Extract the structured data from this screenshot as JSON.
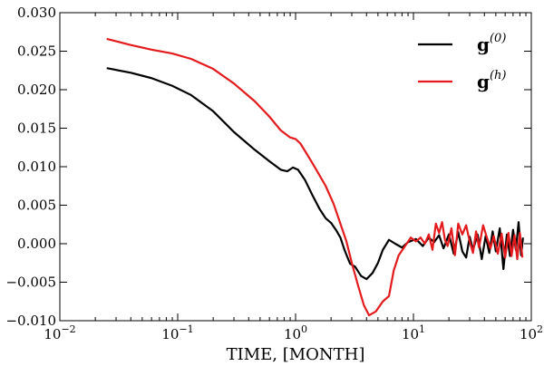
{
  "chart_data": {
    "type": "line",
    "xlabel": "TIME, [MONTH]",
    "ylabel": "",
    "xscale": "log",
    "xlim": [
      0.01,
      100
    ],
    "ylim": [
      -0.01,
      0.03
    ],
    "grid": false,
    "legend_position": "top-right",
    "x_ticks": [
      0.01,
      0.1,
      1,
      10,
      100
    ],
    "x_tick_labels": [
      {
        "base": "10",
        "exp": "−2"
      },
      {
        "base": "10",
        "exp": "−1"
      },
      {
        "base": "10",
        "exp": "0"
      },
      {
        "base": "10",
        "exp": "1"
      },
      {
        "base": "10",
        "exp": "2"
      }
    ],
    "y_ticks": [
      -0.01,
      -0.005,
      0.0,
      0.005,
      0.01,
      0.015,
      0.02,
      0.025,
      0.03
    ],
    "y_tick_labels": [
      "−0.010",
      "−0.005",
      "0.000",
      "0.005",
      "0.010",
      "0.015",
      "0.020",
      "0.025",
      "0.030"
    ],
    "series": [
      {
        "name": "g(0)",
        "legend_base": "g",
        "legend_sup": "(0)",
        "color": "#000000",
        "points": [
          [
            0.025,
            0.0228
          ],
          [
            0.04,
            0.0222
          ],
          [
            0.06,
            0.0215
          ],
          [
            0.09,
            0.0205
          ],
          [
            0.13,
            0.0193
          ],
          [
            0.2,
            0.0172
          ],
          [
            0.3,
            0.0145
          ],
          [
            0.45,
            0.0122
          ],
          [
            0.6,
            0.0107
          ],
          [
            0.75,
            0.0096
          ],
          [
            0.85,
            0.0094
          ],
          [
            0.95,
            0.0099
          ],
          [
            1.05,
            0.0096
          ],
          [
            1.2,
            0.0083
          ],
          [
            1.4,
            0.0062
          ],
          [
            1.6,
            0.0045
          ],
          [
            1.8,
            0.0033
          ],
          [
            2.0,
            0.0027
          ],
          [
            2.2,
            0.0018
          ],
          [
            2.4,
            0.0008
          ],
          [
            2.6,
            -0.0008
          ],
          [
            2.9,
            -0.0026
          ],
          [
            3.2,
            -0.003
          ],
          [
            3.6,
            -0.0042
          ],
          [
            4.0,
            -0.0046
          ],
          [
            4.5,
            -0.0038
          ],
          [
            5.0,
            -0.0025
          ],
          [
            5.5,
            -0.0008
          ],
          [
            6.2,
            0.0005
          ],
          [
            7.0,
            0.0
          ],
          [
            8.0,
            -0.0005
          ],
          [
            9.0,
            0.0002
          ],
          [
            10.5,
            0.0006
          ],
          [
            12.0,
            -0.0003
          ],
          [
            13.5,
            0.0008
          ],
          [
            15.0,
            0.0002
          ],
          [
            16.5,
            0.0011
          ],
          [
            18.0,
            -0.0006
          ],
          [
            20.0,
            0.0012
          ],
          [
            22.0,
            -0.0013
          ],
          [
            24.0,
            0.0015
          ],
          [
            26.0,
            -0.001
          ],
          [
            28.0,
            -0.0018
          ],
          [
            30.0,
            0.0009
          ],
          [
            32.0,
            -0.0008
          ],
          [
            35.0,
            0.0012
          ],
          [
            38.0,
            -0.002
          ],
          [
            41.0,
            0.001
          ],
          [
            44.0,
            -0.0012
          ],
          [
            47.0,
            0.0016
          ],
          [
            50.0,
            -0.001
          ],
          [
            54.0,
            0.002
          ],
          [
            58.0,
            -0.0033
          ],
          [
            62.0,
            0.0012
          ],
          [
            66.0,
            -0.0016
          ],
          [
            70.0,
            0.0018
          ],
          [
            74.0,
            -0.0008
          ],
          [
            78.0,
            0.0028
          ],
          [
            82.0,
            -0.0015
          ],
          [
            85.0,
            0.0008
          ]
        ]
      },
      {
        "name": "g(h)",
        "legend_base": "g",
        "legend_sup": "(h)",
        "color": "#e41a1c",
        "points": [
          [
            0.025,
            0.0266
          ],
          [
            0.04,
            0.0258
          ],
          [
            0.06,
            0.0252
          ],
          [
            0.09,
            0.0247
          ],
          [
            0.13,
            0.024
          ],
          [
            0.2,
            0.0227
          ],
          [
            0.3,
            0.0208
          ],
          [
            0.45,
            0.0185
          ],
          [
            0.6,
            0.0165
          ],
          [
            0.75,
            0.0147
          ],
          [
            0.9,
            0.0138
          ],
          [
            1.0,
            0.0136
          ],
          [
            1.1,
            0.013
          ],
          [
            1.3,
            0.0112
          ],
          [
            1.5,
            0.0096
          ],
          [
            1.8,
            0.0075
          ],
          [
            2.1,
            0.0052
          ],
          [
            2.4,
            0.0026
          ],
          [
            2.7,
            0.0003
          ],
          [
            3.0,
            -0.0025
          ],
          [
            3.4,
            -0.0055
          ],
          [
            3.8,
            -0.008
          ],
          [
            4.2,
            -0.0093
          ],
          [
            4.8,
            -0.0088
          ],
          [
            5.5,
            -0.0075
          ],
          [
            6.2,
            -0.0068
          ],
          [
            6.8,
            -0.0035
          ],
          [
            7.5,
            -0.0015
          ],
          [
            8.5,
            -0.0003
          ],
          [
            9.5,
            0.0008
          ],
          [
            10.5,
            0.0003
          ],
          [
            11.5,
            0.0008
          ],
          [
            12.5,
            0.0
          ],
          [
            13.5,
            0.0012
          ],
          [
            14.5,
            -0.0008
          ],
          [
            15.5,
            0.0026
          ],
          [
            16.5,
            0.0014
          ],
          [
            17.5,
            0.0028
          ],
          [
            18.5,
            0.0005
          ],
          [
            19.5,
            -0.0003
          ],
          [
            21.0,
            0.002
          ],
          [
            22.5,
            -0.0015
          ],
          [
            24.0,
            0.0026
          ],
          [
            26.0,
            0.0012
          ],
          [
            28.0,
            0.0024
          ],
          [
            30.0,
            0.0003
          ],
          [
            32.0,
            -0.0012
          ],
          [
            34.0,
            0.0016
          ],
          [
            36.0,
            -0.0005
          ],
          [
            39.0,
            0.0024
          ],
          [
            42.0,
            0.0008
          ],
          [
            45.0,
            -0.0006
          ],
          [
            48.0,
            0.001
          ],
          [
            52.0,
            -0.0013
          ],
          [
            56.0,
            0.0013
          ],
          [
            60.0,
            -0.0018
          ],
          [
            64.0,
            0.0014
          ],
          [
            68.0,
            -0.0016
          ],
          [
            72.0,
            0.0011
          ],
          [
            76.0,
            -0.002
          ],
          [
            80.0,
            0.0014
          ],
          [
            84.0,
            -0.0018
          ]
        ]
      }
    ]
  }
}
